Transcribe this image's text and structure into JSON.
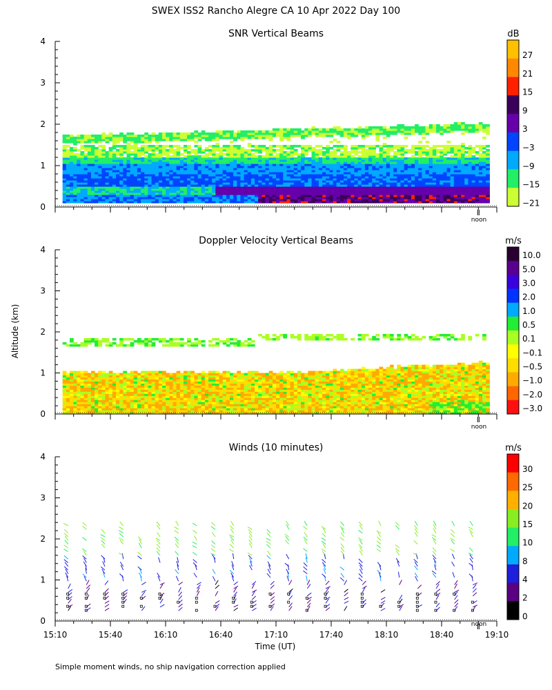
{
  "title": "SWEX ISS2 Rancho Alegre CA  10 Apr 2022 Day 100",
  "footnote": "Simple moment winds, no ship navigation correction applied",
  "y_axis_label": "Altitude (km)",
  "x_axis_label": "Time (UT)",
  "noon_label": "noon",
  "colors": {
    "background": "#ffffff",
    "axis": "#000000",
    "field_white": "#ffffff"
  },
  "chart_data": [
    {
      "type": "heatmap",
      "title": "SNR Vertical Beams",
      "colorbar_unit": "dB",
      "colorbar_ticks": [
        "27",
        "21",
        "15",
        "9",
        "3",
        "−3",
        "−9",
        "−15",
        "−21"
      ],
      "colorbar_colors": [
        "#ffc000",
        "#ff8800",
        "#ff2000",
        "#3a005a",
        "#6600aa",
        "#0044ff",
        "#00aaff",
        "#22ee66",
        "#ccff33"
      ],
      "ylim": [
        0,
        4
      ],
      "yticks": [
        "0",
        "1",
        "2",
        "3",
        "4"
      ],
      "xlim_minutes_utc": [
        910,
        1150
      ],
      "layers": [
        {
          "from_km": 0.1,
          "to_km": 0.3,
          "value_db": 5,
          "note": "violet near-surface band, strongest after 17:30"
        },
        {
          "from_km": 0.3,
          "to_km": 0.8,
          "value_db": -3,
          "note": "blue core"
        },
        {
          "from_km": 0.8,
          "to_km": 1.1,
          "value_db": -9,
          "note": "cyan"
        },
        {
          "from_km": 1.1,
          "to_km": 1.3,
          "value_db": -15,
          "note": "green"
        },
        {
          "from_km": 1.3,
          "to_km": 1.55,
          "value_db": -21,
          "note": "yellow-green patches"
        },
        {
          "from_km": 1.6,
          "to_km": 2.0,
          "value_db": -18,
          "note": "inversion layer top, rising 1.7 to 2.0 km"
        }
      ]
    },
    {
      "type": "heatmap",
      "title": "Doppler Velocity Vertical Beams",
      "colorbar_unit": "m/s",
      "colorbar_ticks": [
        "10.0",
        "5.0",
        "3.0",
        "2.0",
        "1.0",
        "0.5",
        "0.1",
        "−0.1",
        "−0.5",
        "−1.0",
        "−2.0",
        "−3.0"
      ],
      "colorbar_colors": [
        "#2a0030",
        "#5a0090",
        "#3a00dd",
        "#0033ff",
        "#00aaff",
        "#22ee33",
        "#aaff22",
        "#ffff00",
        "#ffdd00",
        "#ffaa00",
        "#ff6600",
        "#ff1010"
      ],
      "ylim": [
        0,
        4
      ],
      "yticks": [
        "0",
        "1",
        "2",
        "3",
        "4"
      ],
      "xlim_minutes_utc": [
        910,
        1150
      ],
      "layers": [
        {
          "from_km": 0.0,
          "to_km": 1.05,
          "value_ms": -0.3,
          "note": "mostly yellow/orange, mixed green; top rises to 1.25 km after 17:40"
        },
        {
          "from_km": 1.7,
          "to_km": 2.0,
          "value_ms": 0.2,
          "note": "thin green/yellow layer, intermittent"
        }
      ]
    },
    {
      "type": "scatter",
      "title": "Winds (10 minutes)",
      "colorbar_unit": "m/s",
      "colorbar_ticks": [
        "30",
        "25",
        "20",
        "15",
        "10",
        "8",
        "4",
        "2",
        "0"
      ],
      "colorbar_colors": [
        "#ff0000",
        "#ff6a00",
        "#ffb000",
        "#88ee22",
        "#22ee66",
        "#00aaff",
        "#1e1edd",
        "#5a0080",
        "#000000"
      ],
      "ylim": [
        0,
        4
      ],
      "yticks": [
        "0",
        "1",
        "2",
        "3",
        "4"
      ],
      "xticks": [
        "15:10",
        "15:40",
        "16:10",
        "16:40",
        "17:10",
        "17:40",
        "18:10",
        "18:40",
        "19:10"
      ],
      "xlim_minutes_utc": [
        910,
        1150
      ],
      "profile_times_minutes_utc": [
        920,
        930,
        940,
        950,
        960,
        970,
        980,
        990,
        1000,
        1010,
        1020,
        1030,
        1040,
        1050,
        1060,
        1070,
        1080,
        1090,
        1100,
        1110,
        1120,
        1130,
        1140
      ],
      "height_bands": [
        {
          "from_km": 0.2,
          "to_km": 0.9,
          "speed_ms": 3,
          "note": "light winds, violet/black"
        },
        {
          "from_km": 0.9,
          "to_km": 1.6,
          "speed_ms": 6,
          "note": "blue"
        },
        {
          "from_km": 1.6,
          "to_km": 2.4,
          "speed_ms": 15,
          "note": "green; occasional cyan/yellow"
        }
      ]
    }
  ]
}
